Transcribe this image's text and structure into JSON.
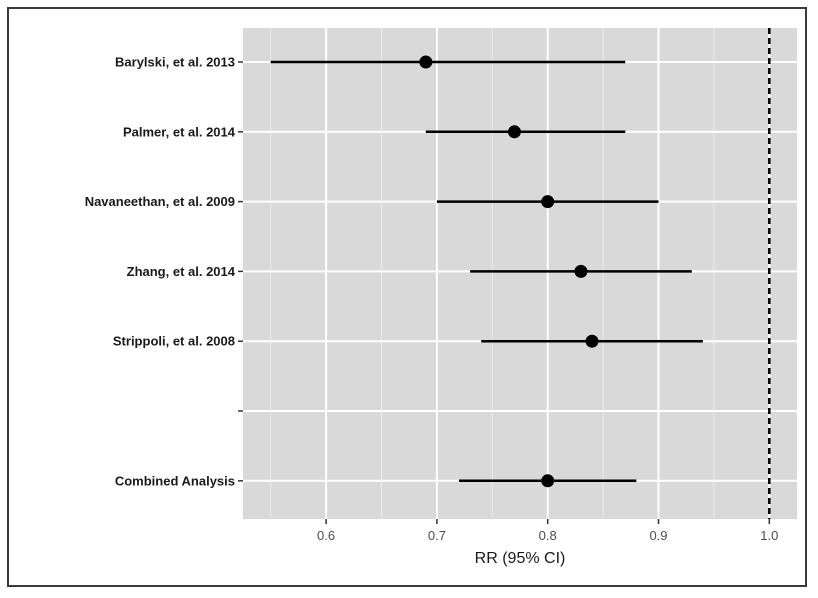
{
  "chart_data": {
    "type": "scatter",
    "subtype": "forest-plot",
    "title": "",
    "xlabel": "RR (95% CI)",
    "ylabel": "",
    "xlim": [
      0.525,
      1.025
    ],
    "x_ticks": [
      0.6,
      0.7,
      0.8,
      0.9,
      1.0
    ],
    "x_tick_labels": [
      "0.6",
      "0.7",
      "0.8",
      "0.9",
      "1.0"
    ],
    "reference_line": {
      "x": 1.0,
      "style": "dashed"
    },
    "grid": true,
    "background": "#d9d9d9",
    "point_color": "#000000",
    "rows": [
      {
        "label": "Barylski, et al. 2013",
        "rr": 0.69,
        "lower": 0.55,
        "upper": 0.87
      },
      {
        "label": "Palmer, et al. 2014",
        "rr": 0.77,
        "lower": 0.69,
        "upper": 0.87
      },
      {
        "label": "Navaneethan, et al. 2009",
        "rr": 0.8,
        "lower": 0.7,
        "upper": 0.9
      },
      {
        "label": "Zhang, et al. 2014",
        "rr": 0.83,
        "lower": 0.73,
        "upper": 0.93
      },
      {
        "label": "Strippoli, et al. 2008",
        "rr": 0.84,
        "lower": 0.74,
        "upper": 0.94
      },
      {
        "label": "",
        "rr": null,
        "lower": null,
        "upper": null
      },
      {
        "label": "Combined Analysis",
        "rr": 0.8,
        "lower": 0.72,
        "upper": 0.88
      }
    ]
  }
}
